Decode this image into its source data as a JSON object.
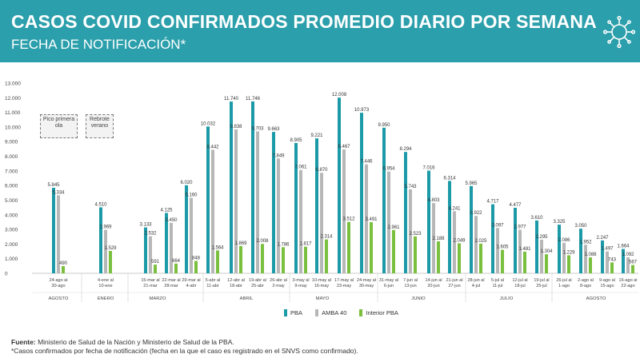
{
  "header": {
    "title": "CASOS COVID CONFIRMADOS PROMEDIO DIARIO POR SEMANA",
    "subtitle": "FECHA DE NOTIFICACIÓN*"
  },
  "annotations": [
    {
      "text": "Pico primera ola"
    },
    {
      "text": "Rebrote verano"
    }
  ],
  "footer": {
    "source_label": "Fuente:",
    "source_text": " Ministerio de Salud de la Nación y Ministerio de Salud de la PBA.",
    "note": "*Casos confirmados por fecha de notificación (fecha en la que el caso es registrado en el SNVS como confirmado)."
  },
  "colors": {
    "banner": "#2b9fab",
    "PBA": "#1c9aa8",
    "AMBA 40": "#b7b7b7",
    "Interior PBA": "#7bbf3e"
  },
  "chart_data": {
    "type": "bar",
    "ylim": [
      0,
      13000
    ],
    "yticks": [
      "0",
      "1.000",
      "2.000",
      "3.000",
      "4.000",
      "5.000",
      "6.000",
      "7.000",
      "8.000",
      "9.000",
      "10.000",
      "11.000",
      "12.000",
      "13.000"
    ],
    "legend": [
      "PBA",
      "AMBA 40",
      "Interior PBA"
    ],
    "categories": [
      {
        "l1": "24-ago al",
        "l2": "30-ago"
      },
      {
        "l1": "4-ene al",
        "l2": "10-ene"
      },
      {
        "l1": "15-mar al",
        "l2": "21-mar"
      },
      {
        "l1": "22-mar al",
        "l2": "28-mar"
      },
      {
        "l1": "29-mar al",
        "l2": "4-abr"
      },
      {
        "l1": "5-abr al",
        "l2": "11-abr"
      },
      {
        "l1": "12-abr al",
        "l2": "18-abr"
      },
      {
        "l1": "19-abr al",
        "l2": "25-abr"
      },
      {
        "l1": "26-abr al",
        "l2": "2-may"
      },
      {
        "l1": "3-may al",
        "l2": "9-may"
      },
      {
        "l1": "10-may al",
        "l2": "16-may"
      },
      {
        "l1": "17-may al",
        "l2": "23-may"
      },
      {
        "l1": "24-may al",
        "l2": "30-may"
      },
      {
        "l1": "31-may al",
        "l2": "6-jun"
      },
      {
        "l1": "7-jun al",
        "l2": "13-jun"
      },
      {
        "l1": "14-jun al",
        "l2": "20-jun"
      },
      {
        "l1": "21-jun al",
        "l2": "27-jun"
      },
      {
        "l1": "28-jun al",
        "l2": "4-jul"
      },
      {
        "l1": "5-jul al",
        "l2": "11-jul"
      },
      {
        "l1": "12-jul al",
        "l2": "18-jul"
      },
      {
        "l1": "19-jul al",
        "l2": "25-jul"
      },
      {
        "l1": "26-jul al",
        "l2": "1-ago"
      },
      {
        "l1": "2-ago al",
        "l2": "8-ago"
      },
      {
        "l1": "9-ago al",
        "l2": "15-ago"
      },
      {
        "l1": "16-ago al",
        "l2": "22-ago"
      }
    ],
    "groups": [
      "AGOSTO",
      "ENERO",
      "MARZO",
      "ABRIL",
      "MAYO",
      "JUNIO",
      "JULIO",
      "AGOSTO"
    ],
    "series": [
      {
        "name": "PBA",
        "values": [
          5845,
          4510,
          3133,
          4125,
          6020,
          10032,
          11740,
          11746,
          9663,
          8905,
          9221,
          12008,
          10973,
          9950,
          8294,
          7016,
          6314,
          5965,
          4717,
          4477,
          3610,
          3325,
          3050,
          2247,
          1664
        ]
      },
      {
        "name": "AMBA 40",
        "values": [
          5334,
          2969,
          2532,
          3450,
          5160,
          8442,
          9838,
          9703,
          7849,
          7061,
          6870,
          8467,
          7446,
          6954,
          5743,
          4803,
          4241,
          3922,
          3097,
          2977,
          2295,
          2086,
          1952,
          1497,
          1092
        ]
      },
      {
        "name": "Interior PBA",
        "values": [
          490,
          1529,
          591,
          664,
          848,
          1564,
          1869,
          2008,
          1786,
          1817,
          2314,
          3512,
          3491,
          2961,
          2523,
          2188,
          2049,
          2025,
          1605,
          1481,
          1304,
          1229,
          1088,
          743,
          567
        ]
      }
    ],
    "value_labels": [
      [
        "5.845",
        "5.334",
        "490"
      ],
      [
        "4.510",
        "2.969",
        "1.529"
      ],
      [
        "3.133",
        "2.532",
        "591"
      ],
      [
        "4.125",
        "3.450",
        "664"
      ],
      [
        "6.020",
        "5.160",
        "848"
      ],
      [
        "10.032",
        "8.442",
        "1.564"
      ],
      [
        "11.740",
        "9.838",
        "1.869"
      ],
      [
        "11.746",
        "9.703",
        "2.008"
      ],
      [
        "9.663",
        "7.849",
        "1.786"
      ],
      [
        "8.905",
        "7.061",
        "1.817"
      ],
      [
        "9.221",
        "6.870",
        "2.314"
      ],
      [
        "12.008",
        "8.467",
        "3.512"
      ],
      [
        "10.973",
        "7.446",
        "3.491"
      ],
      [
        "9.950",
        "6.954",
        "2.961"
      ],
      [
        "8.294",
        "5.743",
        "2.523"
      ],
      [
        "7.016",
        "4.803",
        "2.188"
      ],
      [
        "6.314",
        "4.241",
        "2.049"
      ],
      [
        "5.965",
        "3.922",
        "2.025"
      ],
      [
        "4.717",
        "3.097",
        "1.605"
      ],
      [
        "4.477",
        "2.977",
        "1.481"
      ],
      [
        "3.610",
        "2.295",
        "1.304"
      ],
      [
        "3.325",
        "2.086",
        "1.229"
      ],
      [
        "3.050",
        "1.952",
        "1.088"
      ],
      [
        "2.247",
        "1.497",
        "743"
      ],
      [
        "1.664",
        "1.092",
        "567"
      ]
    ]
  }
}
